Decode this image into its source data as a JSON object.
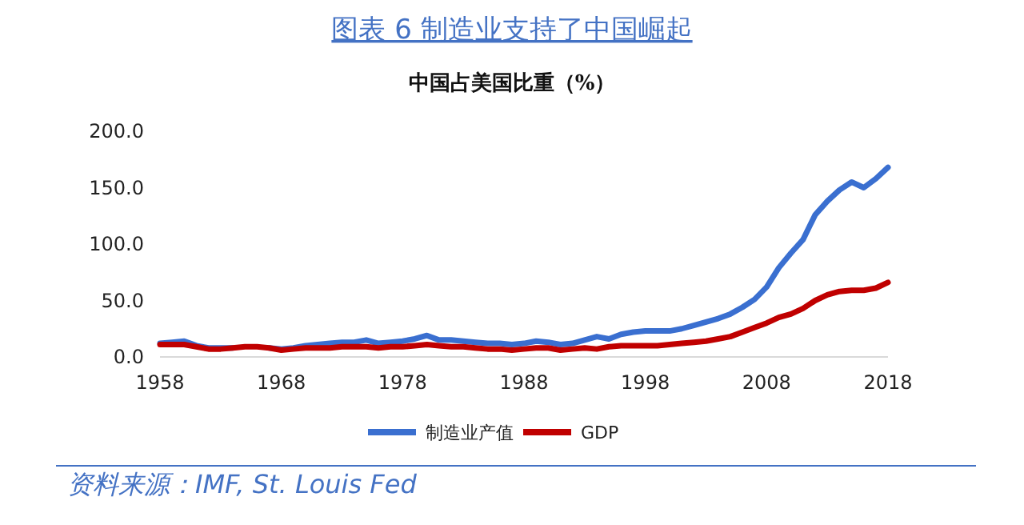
{
  "chart_data": {
    "type": "line",
    "title": "图表 6 制造业支持了中国崛起",
    "subtitle": "中国占美国比重（%）",
    "x": [
      1958,
      1959,
      1960,
      1961,
      1962,
      1963,
      1964,
      1965,
      1966,
      1967,
      1968,
      1969,
      1970,
      1971,
      1972,
      1973,
      1974,
      1975,
      1976,
      1977,
      1978,
      1979,
      1980,
      1981,
      1982,
      1983,
      1984,
      1985,
      1986,
      1987,
      1988,
      1989,
      1990,
      1991,
      1992,
      1993,
      1994,
      1995,
      1996,
      1997,
      1998,
      1999,
      2000,
      2001,
      2002,
      2003,
      2004,
      2005,
      2006,
      2007,
      2008,
      2009,
      2010,
      2011,
      2012,
      2013,
      2014,
      2015,
      2016,
      2017,
      2018
    ],
    "series": [
      {
        "name": "制造业产值",
        "color": "#3a6fd0",
        "values": [
          12,
          13,
          14,
          10,
          8,
          8,
          8,
          null,
          null,
          8,
          7,
          8,
          10,
          11,
          12,
          13,
          13,
          15,
          12,
          13,
          14,
          16,
          19,
          15,
          15,
          14,
          13,
          12,
          12,
          11,
          12,
          14,
          13,
          11,
          12,
          15,
          18,
          16,
          20,
          22,
          23,
          23,
          23,
          25,
          28,
          31,
          34,
          38,
          44,
          51,
          62,
          79,
          92,
          104,
          126,
          138,
          148,
          155,
          150,
          158,
          168
        ]
      },
      {
        "name": "GDP",
        "color": "#c00000",
        "values": [
          11,
          11,
          11,
          9,
          7,
          7,
          8,
          9,
          9,
          8,
          6,
          7,
          8,
          8,
          8,
          9,
          9,
          9,
          8,
          9,
          9,
          10,
          11,
          10,
          9,
          9,
          8,
          7,
          7,
          6,
          7,
          8,
          8,
          6,
          7,
          8,
          7,
          9,
          10,
          10,
          10,
          10,
          11,
          12,
          13,
          14,
          16,
          18,
          22,
          26,
          30,
          35,
          38,
          43,
          50,
          55,
          58,
          59,
          59,
          61,
          66
        ]
      }
    ],
    "xlim": [
      1958,
      2018
    ],
    "xticks": [
      1958,
      1968,
      1978,
      1988,
      1998,
      2008,
      2018
    ],
    "ylim": [
      0,
      200
    ],
    "yticks": [
      {
        "value": 0,
        "label": "0.0"
      },
      {
        "value": 50,
        "label": "50.0"
      },
      {
        "value": 100,
        "label": "100.0"
      },
      {
        "value": 150,
        "label": "150.0"
      },
      {
        "value": 200,
        "label": "200.0"
      }
    ],
    "grid": false,
    "legend": "bottom",
    "annotations": [
      "资料来源：IMF, St. Louis Fed"
    ]
  }
}
